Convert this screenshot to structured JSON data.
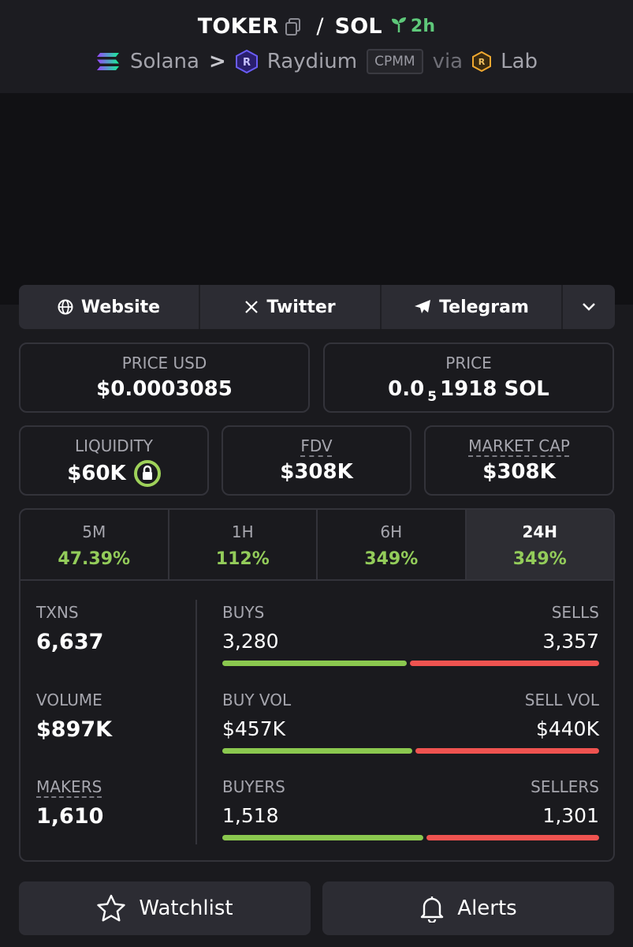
{
  "header": {
    "token": "TOKER",
    "separator": "/",
    "quote": "SOL",
    "age": "2h",
    "chain": "Solana",
    "chevron": ">",
    "dex": "Raydium",
    "pool_type": "CPMM",
    "via": "via",
    "launchpad": "Lab"
  },
  "links": [
    {
      "label": "Website",
      "icon": "globe-icon"
    },
    {
      "label": "Twitter",
      "icon": "x-icon"
    },
    {
      "label": "Telegram",
      "icon": "telegram-icon"
    }
  ],
  "price_usd": {
    "label": "PRICE USD",
    "value": "$0.0003085"
  },
  "price_native": {
    "label": "PRICE",
    "prefix": "0.0",
    "subscript": "5",
    "suffix": "1918 SOL"
  },
  "liquidity": {
    "label": "LIQUIDITY",
    "value": "$60K"
  },
  "fdv": {
    "label": "FDV",
    "value": "$308K"
  },
  "market_cap": {
    "label": "MARKET CAP",
    "value": "$308K"
  },
  "timeframes": [
    {
      "label": "5M",
      "change": "47.39%"
    },
    {
      "label": "1H",
      "change": "112%"
    },
    {
      "label": "6H",
      "change": "349%"
    },
    {
      "label": "24H",
      "change": "349%"
    }
  ],
  "stats": {
    "txns": {
      "label": "TXNS",
      "value": "6,637"
    },
    "volume": {
      "label": "VOLUME",
      "value": "$897K"
    },
    "makers": {
      "label": "MAKERS",
      "value": "1,610"
    },
    "buys": {
      "label": "BUYS",
      "value": "3,280",
      "ratio": 0.494
    },
    "sells": {
      "label": "SELLS",
      "value": "3,357"
    },
    "buy_vol": {
      "label": "BUY VOL",
      "value": "$457K",
      "ratio": 0.509
    },
    "sell_vol": {
      "label": "SELL VOL",
      "value": "$440K"
    },
    "buyers": {
      "label": "BUYERS",
      "value": "1,518",
      "ratio": 0.538
    },
    "sellers": {
      "label": "SELLERS",
      "value": "1,301"
    }
  },
  "actions": {
    "watchlist": "Watchlist",
    "alerts": "Alerts"
  },
  "colors": {
    "positive": "#93cc5a",
    "buy_bar": "#8bc84f",
    "sell_bar": "#ef5350",
    "age": "#5ec87a"
  }
}
